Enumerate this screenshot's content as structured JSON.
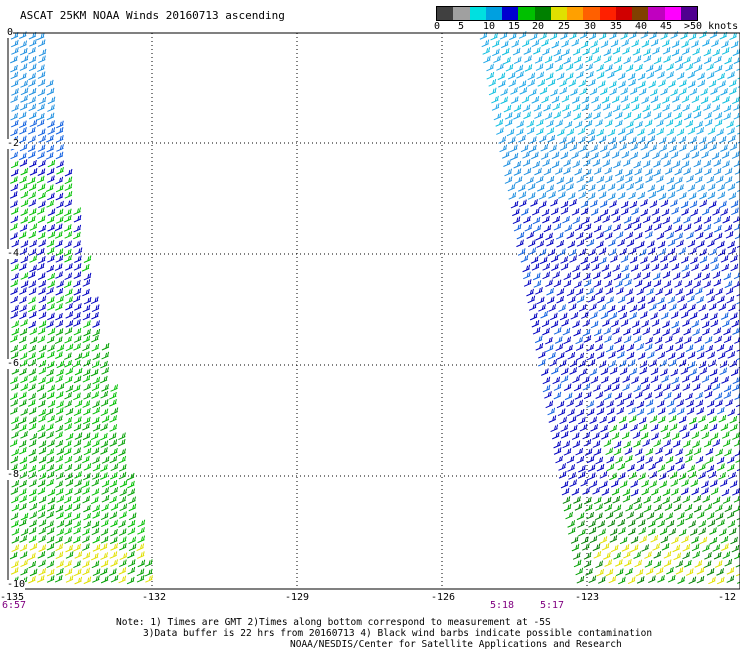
{
  "title": "ASCAT 25KM NOAA Winds 20160713 ascending",
  "colorbar": {
    "colors": [
      "#404040",
      "#a0a0a0",
      "#00e0e0",
      "#00a0e0",
      "#0000d0",
      "#00c000",
      "#008000",
      "#e0e000",
      "#ffa000",
      "#ff6000",
      "#ff2000",
      "#d00000",
      "#804000",
      "#c000c0",
      "#ff00ff",
      "#500090"
    ],
    "labels": [
      "0",
      "5",
      "10",
      "15",
      "20",
      "25",
      "30",
      "35",
      "40",
      "45",
      ">50 knots"
    ]
  },
  "axes": {
    "lon_ticks": [
      "-135",
      "-132",
      "-129",
      "-126",
      "-123",
      "-12"
    ],
    "lat_ticks": [
      "0",
      "-2",
      "-4",
      "-6",
      "-8",
      "-10"
    ]
  },
  "times": {
    "left": "6:57",
    "mid1": "5:18",
    "mid2": "5:17"
  },
  "notes": {
    "line1": "Note: 1) Times are GMT 2)Times along bottom correspond to measurement at -5S",
    "line2": "3)Data buffer is 22 hrs from 20160713 4) Black wind barbs indicate possible contamination",
    "line3": "NOAA/NESDIS/Center for Satellite Applications and Research"
  }
}
